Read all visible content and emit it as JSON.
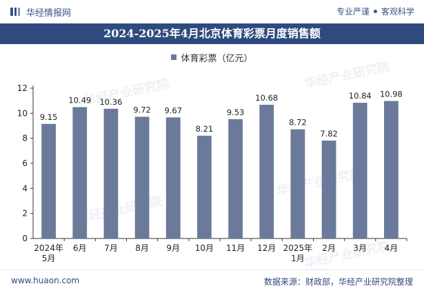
{
  "header": {
    "site_name": "华经情报网",
    "tagline_left": "专业严谨",
    "tagline_right": "客观科学"
  },
  "watermark": "华经产业研究院",
  "chart_data": {
    "type": "bar",
    "title": "2024-2025年4月北京体育彩票月度销售额",
    "categories": [
      "2024年\n5月",
      "6月",
      "7月",
      "8月",
      "9月",
      "10月",
      "11月",
      "12月",
      "2025年\n1月",
      "2月",
      "3月",
      "4月"
    ],
    "series": [
      {
        "name": "体育彩票（亿元）",
        "values": [
          9.15,
          10.49,
          10.36,
          9.72,
          9.67,
          8.21,
          9.53,
          10.68,
          8.72,
          7.82,
          10.84,
          10.98
        ]
      }
    ],
    "ylim": [
      0,
      12
    ],
    "yticks": [
      0,
      2,
      4,
      6,
      8,
      10,
      12
    ],
    "legend_position": "top-center",
    "bar_color": "#6b7a9a",
    "grid": false
  },
  "footer": {
    "source_url": "www.huaon.com",
    "credit": "数据来源：财政部，华经产业研究院整理"
  },
  "colors": {
    "title_bg": "#2e4a7e",
    "brand": "#3a5286"
  }
}
